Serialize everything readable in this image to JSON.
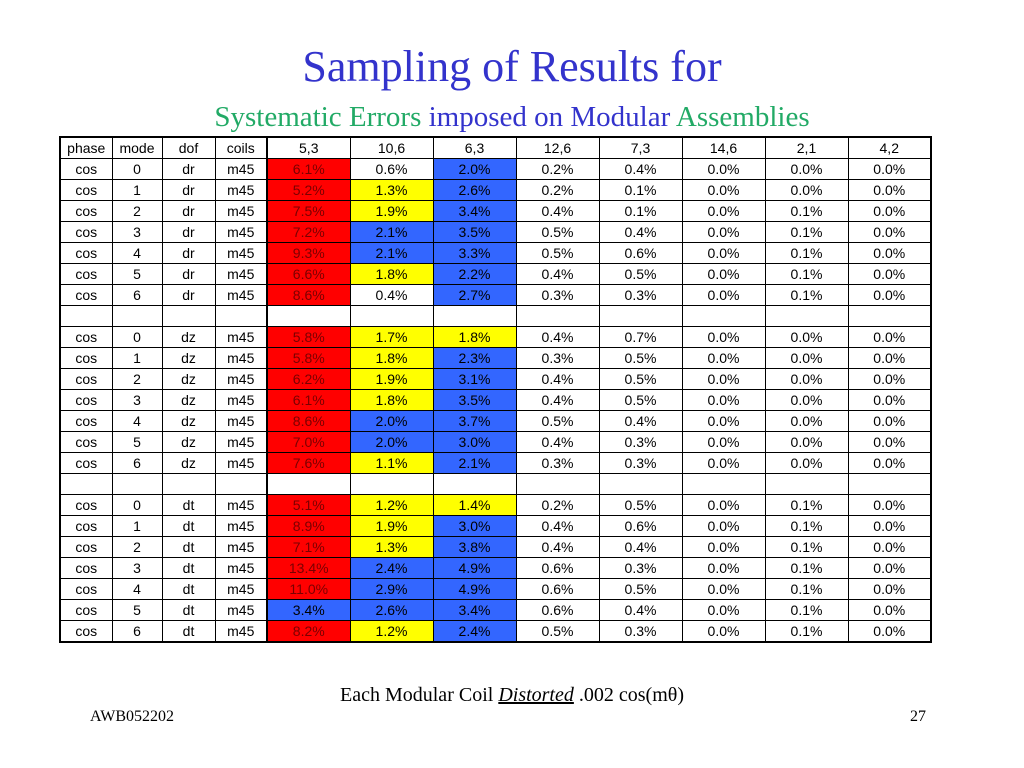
{
  "slide": {
    "title": "Sampling of Results for",
    "subtitle_part1": "Systematic Errors",
    "subtitle_part2": " imposed on Modular ",
    "subtitle_part3": "Assemblies",
    "caption_prefix": "Each Modular Coil ",
    "caption_emph": "Distorted",
    "caption_suffix": " .002 cos(mθ)",
    "footer_left": "AWB052202",
    "footer_right": "27"
  },
  "colors": {
    "title_blue": "#3333cc",
    "subtitle_green": "#22aa66",
    "cell_red": "#ff0000",
    "cell_yellow": "#ffff00",
    "cell_blue": "#3366ff"
  },
  "table": {
    "headers": [
      "phase",
      "mode",
      "dof",
      "coils",
      "5,3",
      "10,6",
      "6,3",
      "12,6",
      "7,3",
      "14,6",
      "2,1",
      "4,2"
    ],
    "rows": [
      {
        "cells": [
          "cos",
          "0",
          "dr",
          "m45",
          "6.1%",
          "0.6%",
          "2.0%",
          "0.2%",
          "0.4%",
          "0.0%",
          "0.0%",
          "0.0%"
        ],
        "colors": [
          "red",
          "white",
          "blue"
        ]
      },
      {
        "cells": [
          "cos",
          "1",
          "dr",
          "m45",
          "5.2%",
          "1.3%",
          "2.6%",
          "0.2%",
          "0.1%",
          "0.0%",
          "0.0%",
          "0.0%"
        ],
        "colors": [
          "red",
          "yellow",
          "blue"
        ]
      },
      {
        "cells": [
          "cos",
          "2",
          "dr",
          "m45",
          "7.5%",
          "1.9%",
          "3.4%",
          "0.4%",
          "0.1%",
          "0.0%",
          "0.1%",
          "0.0%"
        ],
        "colors": [
          "red",
          "yellow",
          "blue"
        ]
      },
      {
        "cells": [
          "cos",
          "3",
          "dr",
          "m45",
          "7.2%",
          "2.1%",
          "3.5%",
          "0.5%",
          "0.4%",
          "0.0%",
          "0.1%",
          "0.0%"
        ],
        "colors": [
          "red",
          "blue",
          "blue"
        ]
      },
      {
        "cells": [
          "cos",
          "4",
          "dr",
          "m45",
          "9.3%",
          "2.1%",
          "3.3%",
          "0.5%",
          "0.6%",
          "0.0%",
          "0.1%",
          "0.0%"
        ],
        "colors": [
          "red",
          "blue",
          "blue"
        ]
      },
      {
        "cells": [
          "cos",
          "5",
          "dr",
          "m45",
          "6.6%",
          "1.8%",
          "2.2%",
          "0.4%",
          "0.5%",
          "0.0%",
          "0.1%",
          "0.0%"
        ],
        "colors": [
          "red",
          "yellow",
          "blue"
        ]
      },
      {
        "cells": [
          "cos",
          "6",
          "dr",
          "m45",
          "8.6%",
          "0.4%",
          "2.7%",
          "0.3%",
          "0.3%",
          "0.0%",
          "0.1%",
          "0.0%"
        ],
        "colors": [
          "red",
          "white",
          "blue"
        ]
      },
      {
        "cells": [
          "",
          "",
          "",
          "",
          "",
          "",
          "",
          "",
          "",
          "",
          "",
          ""
        ],
        "colors": [
          "white",
          "white",
          "white"
        ]
      },
      {
        "cells": [
          "cos",
          "0",
          "dz",
          "m45",
          "5.8%",
          "1.7%",
          "1.8%",
          "0.4%",
          "0.7%",
          "0.0%",
          "0.0%",
          "0.0%"
        ],
        "colors": [
          "red",
          "yellow",
          "yellow"
        ]
      },
      {
        "cells": [
          "cos",
          "1",
          "dz",
          "m45",
          "5.8%",
          "1.8%",
          "2.3%",
          "0.3%",
          "0.5%",
          "0.0%",
          "0.0%",
          "0.0%"
        ],
        "colors": [
          "red",
          "yellow",
          "blue"
        ]
      },
      {
        "cells": [
          "cos",
          "2",
          "dz",
          "m45",
          "6.2%",
          "1.9%",
          "3.1%",
          "0.4%",
          "0.5%",
          "0.0%",
          "0.0%",
          "0.0%"
        ],
        "colors": [
          "red",
          "yellow",
          "blue"
        ]
      },
      {
        "cells": [
          "cos",
          "3",
          "dz",
          "m45",
          "6.1%",
          "1.8%",
          "3.5%",
          "0.4%",
          "0.5%",
          "0.0%",
          "0.0%",
          "0.0%"
        ],
        "colors": [
          "red",
          "yellow",
          "blue"
        ]
      },
      {
        "cells": [
          "cos",
          "4",
          "dz",
          "m45",
          "8.6%",
          "2.0%",
          "3.7%",
          "0.5%",
          "0.4%",
          "0.0%",
          "0.0%",
          "0.0%"
        ],
        "colors": [
          "red",
          "blue",
          "blue"
        ]
      },
      {
        "cells": [
          "cos",
          "5",
          "dz",
          "m45",
          "7.0%",
          "2.0%",
          "3.0%",
          "0.4%",
          "0.3%",
          "0.0%",
          "0.0%",
          "0.0%"
        ],
        "colors": [
          "red",
          "blue",
          "blue"
        ]
      },
      {
        "cells": [
          "cos",
          "6",
          "dz",
          "m45",
          "7.6%",
          "1.1%",
          "2.1%",
          "0.3%",
          "0.3%",
          "0.0%",
          "0.0%",
          "0.0%"
        ],
        "colors": [
          "red",
          "yellow",
          "blue"
        ]
      },
      {
        "cells": [
          "",
          "",
          "",
          "",
          "",
          "",
          "",
          "",
          "",
          "",
          "",
          ""
        ],
        "colors": [
          "white",
          "white",
          "white"
        ]
      },
      {
        "cells": [
          "cos",
          "0",
          "dt",
          "m45",
          "5.1%",
          "1.2%",
          "1.4%",
          "0.2%",
          "0.5%",
          "0.0%",
          "0.1%",
          "0.0%"
        ],
        "colors": [
          "red",
          "yellow",
          "yellow"
        ]
      },
      {
        "cells": [
          "cos",
          "1",
          "dt",
          "m45",
          "8.9%",
          "1.9%",
          "3.0%",
          "0.4%",
          "0.6%",
          "0.0%",
          "0.1%",
          "0.0%"
        ],
        "colors": [
          "red",
          "yellow",
          "blue"
        ]
      },
      {
        "cells": [
          "cos",
          "2",
          "dt",
          "m45",
          "7.1%",
          "1.3%",
          "3.8%",
          "0.4%",
          "0.4%",
          "0.0%",
          "0.1%",
          "0.0%"
        ],
        "colors": [
          "red",
          "yellow",
          "blue"
        ]
      },
      {
        "cells": [
          "cos",
          "3",
          "dt",
          "m45",
          "13.4%",
          "2.4%",
          "4.9%",
          "0.6%",
          "0.3%",
          "0.0%",
          "0.1%",
          "0.0%"
        ],
        "colors": [
          "red",
          "blue",
          "blue"
        ]
      },
      {
        "cells": [
          "cos",
          "4",
          "dt",
          "m45",
          "11.0%",
          "2.9%",
          "4.9%",
          "0.6%",
          "0.5%",
          "0.0%",
          "0.1%",
          "0.0%"
        ],
        "colors": [
          "red",
          "blue",
          "blue"
        ]
      },
      {
        "cells": [
          "cos",
          "5",
          "dt",
          "m45",
          "3.4%",
          "2.6%",
          "3.4%",
          "0.6%",
          "0.4%",
          "0.0%",
          "0.1%",
          "0.0%"
        ],
        "colors": [
          "blue",
          "blue",
          "blue"
        ]
      },
      {
        "cells": [
          "cos",
          "6",
          "dt",
          "m45",
          "8.2%",
          "1.2%",
          "2.4%",
          "0.5%",
          "0.3%",
          "0.0%",
          "0.1%",
          "0.0%"
        ],
        "colors": [
          "red",
          "yellow",
          "blue"
        ]
      }
    ]
  }
}
